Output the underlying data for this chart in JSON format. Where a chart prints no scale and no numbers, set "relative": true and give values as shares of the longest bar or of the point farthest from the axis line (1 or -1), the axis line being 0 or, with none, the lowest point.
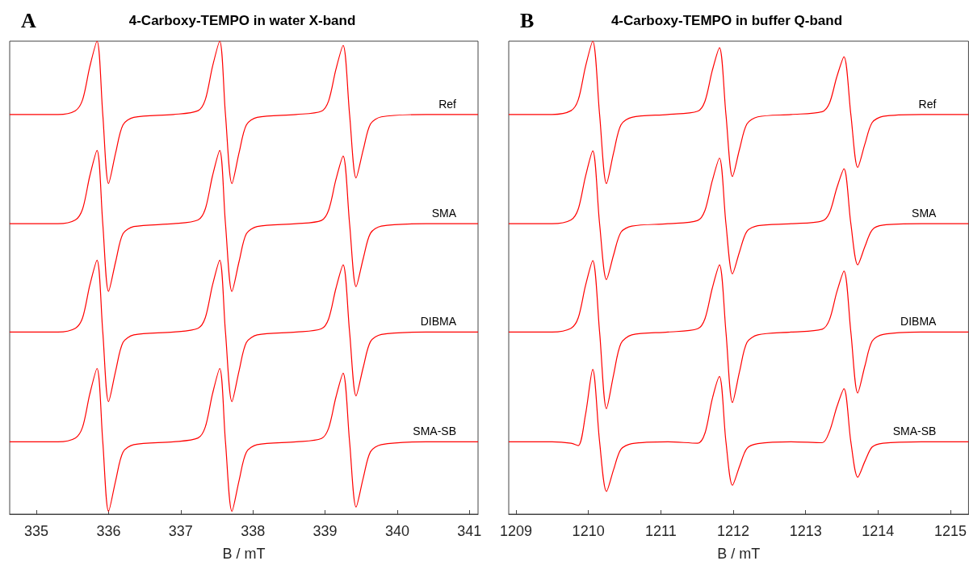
{
  "chart_data": [
    {
      "type": "line",
      "title": "4-Carboxy-TEMPO in water X-band",
      "annotations": [
        "A"
      ],
      "xlabel": "B / mT",
      "xlim": [
        334.63,
        341.12
      ],
      "xticks": [
        335,
        336,
        337,
        338,
        339,
        340,
        341
      ],
      "relative": true,
      "marker": "none",
      "x": [
        334.63,
        335.3,
        335.54,
        335.64,
        335.74,
        335.84,
        335.92,
        336.0,
        336.1,
        336.2,
        336.35,
        336.9,
        337.24,
        337.34,
        337.44,
        337.54,
        337.62,
        337.71,
        337.81,
        337.91,
        338.06,
        338.6,
        338.95,
        339.05,
        339.15,
        339.25,
        339.34,
        339.43,
        339.53,
        339.63,
        339.78,
        340.4,
        341.12
      ],
      "series": [
        {
          "name": "Ref",
          "color": "#ff0000",
          "values": [
            0.845,
            0.845,
            0.853,
            0.876,
            0.946,
            1.0,
            0.845,
            0.699,
            0.765,
            0.823,
            0.839,
            0.845,
            0.853,
            0.876,
            0.946,
            1.0,
            0.845,
            0.699,
            0.765,
            0.823,
            0.839,
            0.845,
            0.852,
            0.874,
            0.94,
            0.991,
            0.845,
            0.711,
            0.771,
            0.825,
            0.84,
            0.845,
            0.845
          ]
        },
        {
          "name": "SMA",
          "color": "#ff0000",
          "values": [
            0.614,
            0.614,
            0.622,
            0.645,
            0.715,
            0.769,
            0.614,
            0.471,
            0.535,
            0.593,
            0.608,
            0.614,
            0.622,
            0.645,
            0.715,
            0.769,
            0.614,
            0.471,
            0.535,
            0.593,
            0.608,
            0.614,
            0.621,
            0.643,
            0.707,
            0.757,
            0.614,
            0.481,
            0.541,
            0.594,
            0.609,
            0.614,
            0.614
          ]
        },
        {
          "name": "DIBMA",
          "color": "#ff0000",
          "values": [
            0.385,
            0.385,
            0.393,
            0.415,
            0.484,
            0.537,
            0.385,
            0.238,
            0.304,
            0.363,
            0.379,
            0.385,
            0.393,
            0.415,
            0.484,
            0.537,
            0.385,
            0.238,
            0.304,
            0.363,
            0.379,
            0.385,
            0.392,
            0.413,
            0.477,
            0.527,
            0.385,
            0.25,
            0.311,
            0.365,
            0.38,
            0.385,
            0.385
          ]
        },
        {
          "name": "SMA-SB",
          "color": "#ff0000",
          "values": [
            0.153,
            0.153,
            0.161,
            0.184,
            0.254,
            0.308,
            0.153,
            0.006,
            0.072,
            0.131,
            0.147,
            0.153,
            0.161,
            0.184,
            0.254,
            0.308,
            0.153,
            0.006,
            0.072,
            0.131,
            0.147,
            0.153,
            0.16,
            0.182,
            0.247,
            0.298,
            0.153,
            0.015,
            0.077,
            0.132,
            0.147,
            0.153,
            0.153
          ]
        }
      ]
    },
    {
      "type": "line",
      "title": "4-Carboxy-TEMPO in buffer Q-band",
      "annotations": [
        "B"
      ],
      "xlabel": "B / mT",
      "xlim": [
        1208.9,
        1215.25
      ],
      "xticks": [
        1209,
        1210,
        1211,
        1212,
        1213,
        1214,
        1215
      ],
      "relative": true,
      "marker": "none",
      "x": [
        1208.9,
        1209.5,
        1209.76,
        1209.86,
        1209.96,
        1210.06,
        1210.155,
        1210.25,
        1210.35,
        1210.45,
        1210.6,
        1211.1,
        1211.51,
        1211.61,
        1211.71,
        1211.81,
        1211.9,
        1211.99,
        1212.09,
        1212.19,
        1212.34,
        1212.8,
        1213.23,
        1213.33,
        1213.43,
        1213.53,
        1213.625,
        1213.72,
        1213.82,
        1213.92,
        1214.07,
        1214.6,
        1215.25
      ],
      "series": [
        {
          "name": "Ref",
          "color": "#ff0000",
          "values": [
            0.845,
            0.845,
            0.853,
            0.876,
            0.946,
            1.0,
            0.845,
            0.699,
            0.765,
            0.823,
            0.839,
            0.845,
            0.852,
            0.873,
            0.937,
            0.986,
            0.845,
            0.714,
            0.773,
            0.825,
            0.84,
            0.845,
            0.851,
            0.869,
            0.924,
            0.967,
            0.845,
            0.733,
            0.783,
            0.828,
            0.841,
            0.845,
            0.845
          ]
        },
        {
          "name": "SMA",
          "color": "#ff0000",
          "values": [
            0.614,
            0.614,
            0.622,
            0.645,
            0.714,
            0.768,
            0.614,
            0.496,
            0.549,
            0.596,
            0.609,
            0.614,
            0.621,
            0.642,
            0.704,
            0.753,
            0.614,
            0.508,
            0.556,
            0.598,
            0.61,
            0.614,
            0.62,
            0.637,
            0.689,
            0.73,
            0.614,
            0.527,
            0.566,
            0.601,
            0.611,
            0.614,
            0.614
          ]
        },
        {
          "name": "DIBMA",
          "color": "#ff0000",
          "values": [
            0.385,
            0.385,
            0.393,
            0.415,
            0.483,
            0.536,
            0.385,
            0.223,
            0.296,
            0.361,
            0.379,
            0.385,
            0.392,
            0.413,
            0.477,
            0.527,
            0.385,
            0.236,
            0.303,
            0.363,
            0.379,
            0.385,
            0.391,
            0.411,
            0.469,
            0.514,
            0.385,
            0.256,
            0.314,
            0.366,
            0.38,
            0.385,
            0.385
          ]
        },
        {
          "name": "SMA-SB",
          "color": "#ff0000",
          "values": [
            0.153,
            0.153,
            0.15,
            0.145,
            0.21,
            0.306,
            0.153,
            0.048,
            0.095,
            0.137,
            0.149,
            0.153,
            0.15,
            0.171,
            0.243,
            0.291,
            0.153,
            0.061,
            0.102,
            0.139,
            0.149,
            0.153,
            0.151,
            0.175,
            0.226,
            0.265,
            0.153,
            0.078,
            0.112,
            0.142,
            0.15,
            0.153,
            0.153
          ]
        }
      ]
    }
  ]
}
